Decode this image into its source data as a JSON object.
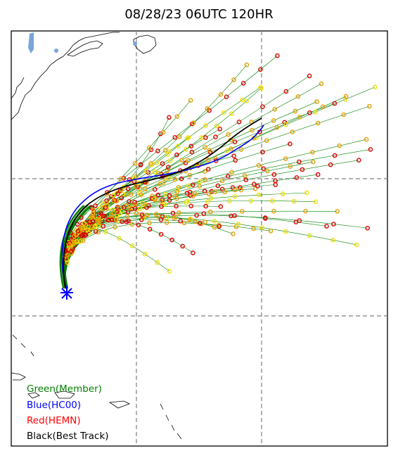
{
  "title": "08/28/23 06UTC 120HR",
  "legend": [
    {
      "label": "Green(Member)",
      "color": "#008000"
    },
    {
      "label": "Blue(HC00)",
      "color": "#0000ff"
    },
    {
      "label": "Red(HEMN)",
      "color": "#ff0000"
    },
    {
      "label": "Black(Best Track)",
      "color": "#000000"
    }
  ],
  "colors": {
    "member": "#008000",
    "hc00": "#0000ff",
    "hemn": "#ff0000",
    "best_track": "#000000",
    "marker_red": "#dd0000",
    "marker_orange": "#e6a000",
    "marker_yellow": "#f0e000",
    "land": "#000000",
    "lakes": "#7aa6d8",
    "grid": "#808080"
  }
}
